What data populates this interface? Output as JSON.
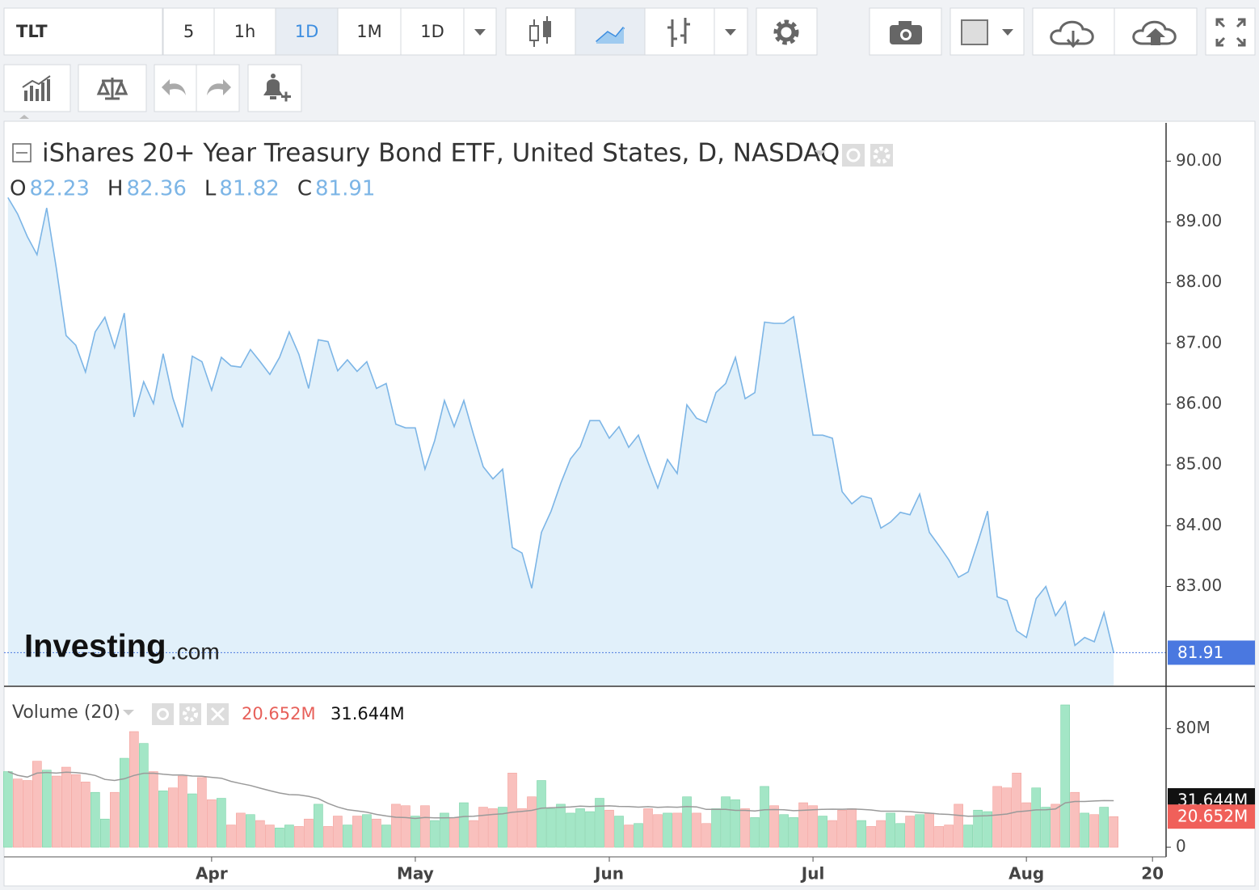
{
  "toolbar": {
    "symbol": "TLT",
    "intervals": [
      "5",
      "1h",
      "1D",
      "1M",
      "1D"
    ],
    "active_interval": 2
  },
  "chart_data": {
    "type": "area",
    "title": "iShares 20+ Year Treasury Bond ETF, United States, D, NASDAQ",
    "ohlc": [
      {
        "key": "O",
        "value": 82.23
      },
      {
        "key": "H",
        "value": 82.36
      },
      {
        "key": "L",
        "value": 81.82
      },
      {
        "key": "C",
        "value": 81.91
      }
    ],
    "watermark": [
      "Investing",
      ".com"
    ],
    "color": "#7cb5e6",
    "fill": "#e1f0fa",
    "values": [
      89.4,
      89.13,
      88.76,
      88.46,
      89.23,
      88.23,
      87.13,
      86.97,
      86.53,
      87.19,
      87.43,
      86.93,
      87.5,
      85.79,
      86.37,
      86.01,
      86.83,
      86.1,
      85.62,
      86.79,
      86.7,
      86.23,
      86.77,
      86.63,
      86.61,
      86.9,
      86.7,
      86.49,
      86.77,
      87.19,
      86.82,
      86.26,
      87.06,
      87.03,
      86.55,
      86.73,
      86.54,
      86.7,
      86.26,
      86.34,
      85.67,
      85.61,
      85.61,
      84.93,
      85.4,
      86.06,
      85.63,
      86.06,
      85.5,
      84.97,
      84.77,
      84.93,
      83.64,
      83.55,
      82.97,
      83.89,
      84.24,
      84.7,
      85.1,
      85.3,
      85.73,
      85.73,
      85.44,
      85.63,
      85.29,
      85.49,
      85.04,
      84.62,
      85.09,
      84.86,
      85.99,
      85.77,
      85.7,
      86.19,
      86.34,
      86.77,
      86.09,
      86.19,
      87.35,
      87.33,
      87.33,
      87.44,
      86.46,
      85.49,
      85.49,
      85.44,
      84.56,
      84.36,
      84.49,
      84.45,
      83.96,
      84.06,
      84.22,
      84.18,
      84.52,
      83.89,
      83.67,
      83.44,
      83.15,
      83.24,
      83.73,
      84.24,
      82.83,
      82.77,
      82.27,
      82.16,
      82.8,
      83.0,
      82.52,
      82.75,
      82.03,
      82.16,
      82.09,
      82.57,
      81.91
    ],
    "last_price": 81.91,
    "ylim": [
      81.37,
      90.63
    ],
    "yticks": [
      {
        "value": 83,
        "label": "83.00"
      },
      {
        "value": 84,
        "label": "84.00"
      },
      {
        "value": 85,
        "label": "85.00"
      },
      {
        "value": 86,
        "label": "86.00"
      },
      {
        "value": 87,
        "label": "87.00"
      },
      {
        "value": 88,
        "label": "88.00"
      },
      {
        "value": 89,
        "label": "89.00"
      },
      {
        "value": 90,
        "label": "90.00"
      }
    ],
    "xlim": [
      -0.4,
      119.4
    ],
    "xticks": [
      {
        "value": 21,
        "label": "Apr"
      },
      {
        "value": 42,
        "label": "May"
      },
      {
        "value": 62,
        "label": "Jun"
      },
      {
        "value": 83,
        "label": "Jul"
      },
      {
        "value": 105,
        "label": "Aug"
      },
      {
        "value": 118,
        "label": "20"
      }
    ],
    "volume": {
      "title": "Volume (20)",
      "up_color": "#a3e6c6",
      "down_color": "#f9c0bd",
      "ma_color": "#9a9a9a",
      "values": [
        51,
        46,
        45,
        58,
        52,
        48,
        54,
        49,
        44,
        37,
        19,
        37,
        60,
        78,
        70,
        51,
        38,
        40,
        48,
        36,
        47,
        32,
        33,
        15,
        23,
        22,
        18,
        15,
        13,
        15,
        14,
        19,
        29,
        14,
        21,
        15,
        21,
        22,
        19,
        15,
        29,
        28,
        21,
        28,
        18,
        23,
        20,
        30,
        18,
        27,
        26,
        27,
        50,
        26,
        34,
        45,
        26,
        29,
        23,
        26,
        24,
        33,
        25,
        21,
        15,
        16,
        26,
        22,
        23,
        23,
        34,
        23,
        16,
        26,
        34,
        32,
        26,
        20,
        41,
        28,
        22,
        20,
        30,
        28,
        21,
        18,
        25,
        26,
        18,
        14,
        18,
        23,
        16,
        21,
        22,
        23,
        14,
        15,
        29,
        15,
        25,
        24,
        41,
        40,
        50,
        30,
        40,
        27,
        29,
        96,
        37,
        23,
        22,
        27,
        20.652
      ],
      "last_volume": {
        "value": 20.652,
        "label": "20.652M"
      },
      "last_ma": {
        "value": 31.644,
        "label": "31.644M"
      },
      "ylim": [
        -6.5,
        108
      ],
      "yticks": [
        0,
        {
          "value": 80,
          "label": "80M"
        }
      ]
    }
  }
}
